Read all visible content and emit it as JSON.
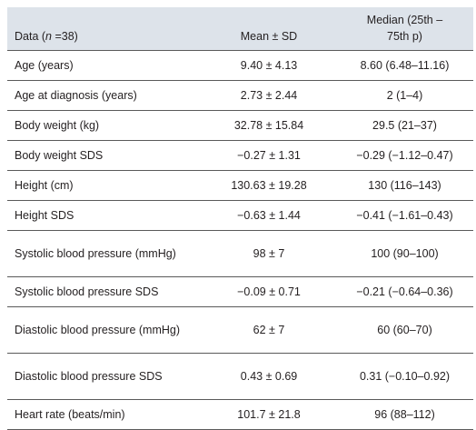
{
  "table": {
    "header": {
      "data_prefix": "Data (",
      "n_italic": "n",
      "data_suffix": " =38)",
      "mean_label": "Mean ± SD",
      "median_line1": "Median (25th –",
      "median_line2": "75th p)"
    },
    "rows": [
      {
        "label": "Age (years)",
        "mean": "9.40 ± 4.13",
        "median": "8.60 (6.48–11.16)"
      },
      {
        "label": "Age at diagnosis (years)",
        "mean": "2.73 ± 2.44",
        "median": "2 (1–4)"
      },
      {
        "label": "Body weight (kg)",
        "mean": "32.78 ± 15.84",
        "median": "29.5 (21–37)"
      },
      {
        "label": "Body weight SDS",
        "mean": "−0.27 ± 1.31",
        "median": "−0.29 (−1.12–0.47)"
      },
      {
        "label": "Height (cm)",
        "mean": "130.63 ± 19.28",
        "median": "130 (116–143)"
      },
      {
        "label": "Height SDS",
        "mean": "−0.63 ± 1.44",
        "median": "−0.41 (−1.61–0.43)"
      },
      {
        "label": "Systolic blood pressure (mmHg)",
        "mean": "98 ± 7",
        "median": "100 (90–100)"
      },
      {
        "label": "Systolic blood pressure SDS",
        "mean": "−0.09 ± 0.71",
        "median": "−0.21 (−0.64–0.36)"
      },
      {
        "label": "Diastolic blood pressure (mmHg)",
        "mean": "62 ± 7",
        "median": "60 (60–70)"
      },
      {
        "label": "Diastolic blood pressure SDS",
        "mean": "0.43 ± 0.69",
        "median": "0.31 (−0.10–0.92)"
      },
      {
        "label": "Heart rate (beats/min)",
        "mean": "101.7 ± 21.8",
        "median": "96 (88–112)"
      }
    ]
  }
}
